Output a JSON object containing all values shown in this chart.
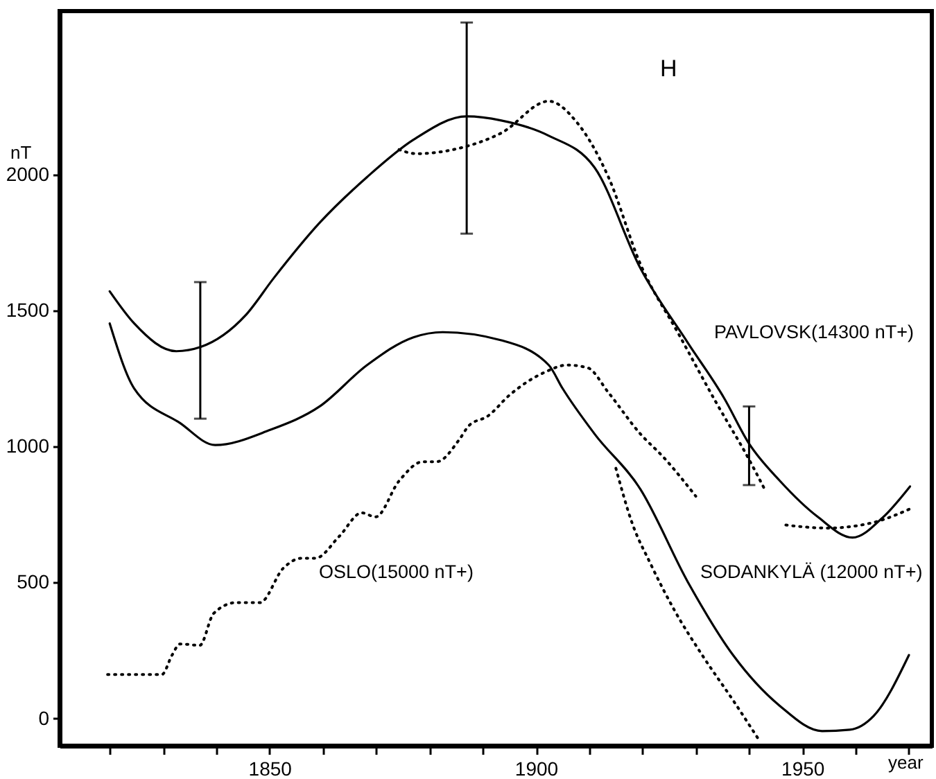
{
  "chart_data": {
    "type": "line",
    "xlabel": "year",
    "ylabel": "nT",
    "annotations": [
      "H"
    ],
    "xlim": [
      1810.6,
      1974.3
    ],
    "ylim": [
      -100,
      2600
    ],
    "xticks": [
      {
        "value": 1820,
        "label": null
      },
      {
        "value": 1830,
        "label": null
      },
      {
        "value": 1840,
        "label": null
      },
      1850,
      {
        "value": 1860,
        "label": null
      },
      {
        "value": 1870,
        "label": null
      },
      {
        "value": 1880,
        "label": null
      },
      {
        "value": 1890,
        "label": null
      },
      1900,
      {
        "value": 1910,
        "label": null
      },
      {
        "value": 1920,
        "label": null
      },
      {
        "value": 1930,
        "label": null
      },
      {
        "value": 1940,
        "label": null
      },
      1950,
      {
        "value": 1960,
        "label": null
      },
      {
        "value": 1970,
        "label": null
      }
    ],
    "yticks": [
      0,
      500,
      1000,
      1500,
      2000
    ],
    "grid": false,
    "marker": "none",
    "series": [
      {
        "name": "PAVLOVSK(14300 nT+)",
        "color": "#000000",
        "line_style": "solid",
        "x": [
          1820,
          1824.6,
          1832.5,
          1837,
          1845.5,
          1850.8,
          1859.4,
          1868.3,
          1877,
          1887,
          1893.5,
          1902.4,
          1911,
          1919.6,
          1928.5,
          1935.3,
          1940,
          1945.8,
          1952.9,
          1959.4,
          1965.2,
          1970.2
        ],
        "values": [
          1570,
          1452,
          1350,
          1365,
          1482,
          1619,
          1822,
          1990,
          2127,
          2213,
          2198,
          2142,
          2025,
          1655,
          1381,
          1178,
          1010,
          873,
          741,
          665,
          741,
          853
        ],
        "errors": [
          null,
          null,
          null,
          [
            1102,
            1604
          ],
          null,
          null,
          null,
          null,
          null,
          [
            1782,
            2558
          ],
          null,
          null,
          null,
          null,
          null,
          null,
          [
            858,
            1147
          ],
          null,
          null,
          null,
          null,
          null
        ]
      },
      {
        "color": "#000000",
        "line_style": "dotted",
        "x": [
          1874.3,
          1877.5,
          1885.6,
          1893.5,
          1902.4,
          1907.6,
          1913.6,
          1919.6,
          1926.7,
          1933.8,
          1939.8,
          1943.2,
          1945,
          1946.9,
          1954.7,
          1963.4,
          1970.4
        ],
        "values": [
          2091,
          2076,
          2096,
          2152,
          2269,
          2193,
          1990,
          1670,
          1416,
          1162,
          959,
          832,
          null,
          711,
          700,
          721,
          772
        ]
      },
      {
        "name": "SODANKYLÄ (12000 nT+)",
        "color": "#000000",
        "line_style": "solid",
        "x": [
          1820,
          1824.6,
          1833.2,
          1839.8,
          1850,
          1859.4,
          1868.3,
          1877,
          1882.5,
          1893.5,
          1902.4,
          1905,
          1911,
          1919.6,
          1928.5,
          1937,
          1945.8,
          1953.7,
          1958.9,
          1963.4,
          1970
        ],
        "values": [
          1452,
          1213,
          1086,
          1005,
          1060,
          1147,
          1299,
          1401,
          1420,
          1390,
          1299,
          1213,
          1046,
          843,
          502,
          233,
          46,
          -46,
          -41,
          10,
          233
        ]
      },
      {
        "color": "#000000",
        "line_style": "dotted",
        "x": [
          1915,
          1918,
          1921.5,
          1925.9,
          1931.2,
          1937.2,
          1941.6
        ],
        "values": [
          920,
          721,
          569,
          401,
          233,
          61,
          -71
        ]
      },
      {
        "name": "OSLO(15000 nT+)",
        "color": "#000000",
        "line_style": "dotted",
        "x": [
          1819.6,
          1829.8,
          1831.7,
          1833.2,
          1836.9,
          1839.5,
          1843.7,
          1848.2,
          1852.6,
          1856,
          1858.6,
          1863.1,
          1867.3,
          1869.9,
          1874.3,
          1878.8,
          1881.4,
          1885.6,
          1887.4,
          1891,
          1895,
          1901.8,
          1905.8,
          1909.7,
          1913.6,
          1919.6,
          1924,
          1930
        ],
        "values": [
          162,
          162,
          233,
          274,
          269,
          386,
          426,
          426,
          553,
          589,
          589,
          670,
          756,
          741,
          873,
          944,
          944,
          1025,
          1076,
          1112,
          1188,
          1274,
          1299,
          1289,
          1198,
          1046,
          959,
          817
        ]
      }
    ]
  }
}
